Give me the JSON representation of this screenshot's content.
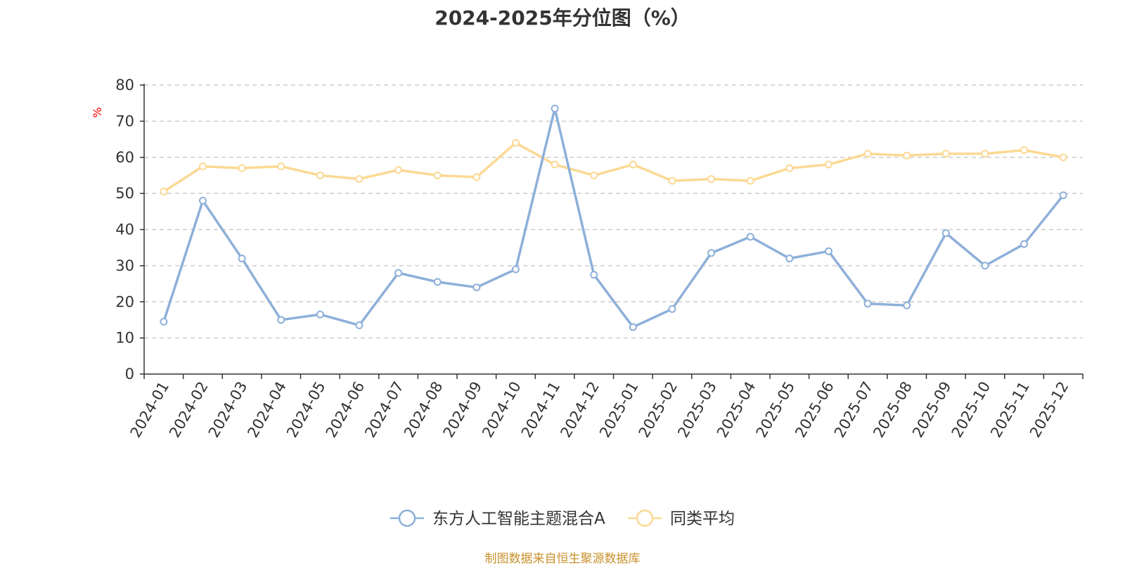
{
  "chart_data": {
    "type": "line",
    "title": "2024-2025年分位图（%）",
    "ylabel": "%",
    "ylim": [
      0,
      80
    ],
    "yticks": [
      0,
      10,
      20,
      30,
      40,
      50,
      60,
      70,
      80
    ],
    "grid": true,
    "legend_position": "bottom",
    "categories": [
      "2024-01",
      "2024-02",
      "2024-03",
      "2024-04",
      "2024-05",
      "2024-06",
      "2024-07",
      "2024-08",
      "2024-09",
      "2024-10",
      "2024-11",
      "2024-12",
      "2025-01",
      "2025-02",
      "2025-03",
      "2025-04",
      "2025-05",
      "2025-06",
      "2025-07",
      "2025-08",
      "2025-09",
      "2025-10",
      "2025-11",
      "2025-12"
    ],
    "series": [
      {
        "name": "东方人工智能主题混合A",
        "color": "#8eb0d9",
        "values": [
          14.5,
          48,
          32,
          15,
          16.5,
          13.5,
          28,
          25.5,
          24,
          29,
          73.5,
          27.5,
          13,
          18,
          33.5,
          38,
          32,
          34,
          19.5,
          19,
          39,
          30,
          36,
          49.5
        ]
      },
      {
        "name": "同类平均",
        "color": "#fbd994",
        "values": [
          50.5,
          57.5,
          57,
          57.5,
          55,
          54,
          56.5,
          55,
          54.5,
          64,
          58,
          55,
          58,
          53.5,
          54,
          53.5,
          57,
          58,
          61,
          60.5,
          61,
          61,
          62,
          60
        ]
      }
    ]
  },
  "source_note": "制图数据来自恒生聚源数据库",
  "colors": {
    "axis": "#333333",
    "grid": "#cccccc",
    "ylabel": "#ff0000",
    "source": "#c8912d"
  }
}
